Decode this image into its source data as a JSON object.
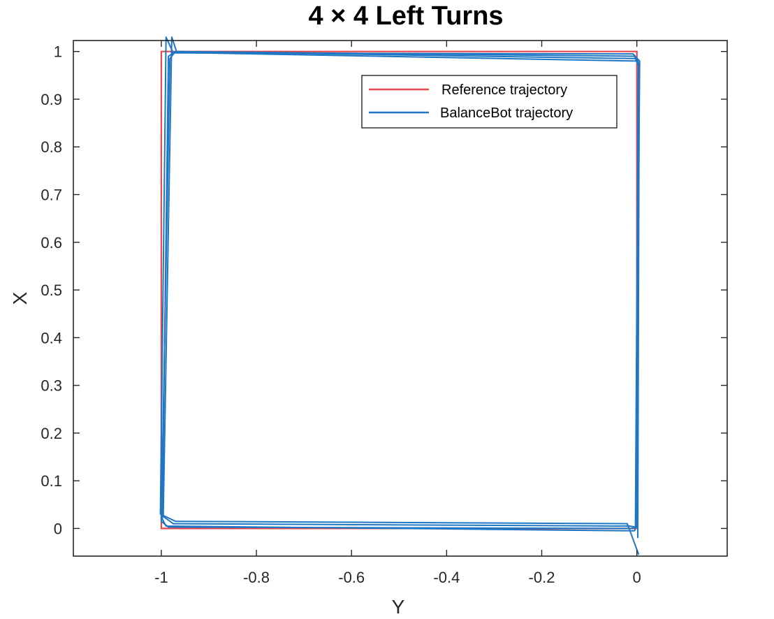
{
  "chart_data": {
    "type": "line",
    "title": "4 × 4 Left Turns",
    "xlabel": "Y",
    "ylabel": "X",
    "xlim": [
      -1.185,
      0.19
    ],
    "ylim": [
      -0.058,
      1.023
    ],
    "x_ticks": [
      -1,
      -0.8,
      -0.6,
      -0.4,
      -0.2,
      0
    ],
    "x_tick_labels": [
      "-1",
      "-0.8",
      "-0.6",
      "-0.4",
      "-0.2",
      "0"
    ],
    "y_ticks": [
      0,
      0.1,
      0.2,
      0.3,
      0.4,
      0.5,
      0.6,
      0.7,
      0.8,
      0.9,
      1
    ],
    "y_tick_labels": [
      "0",
      "0.1",
      "0.2",
      "0.3",
      "0.4",
      "0.5",
      "0.6",
      "0.7",
      "0.8",
      "0.9",
      "1"
    ],
    "grid": false,
    "legend_position": "top-right",
    "series": [
      {
        "name": "Reference trajectory",
        "color": "#e8474c",
        "x": [
          0,
          0,
          -1,
          -1,
          0
        ],
        "y": [
          0,
          1,
          1,
          0,
          0
        ]
      },
      {
        "name": "BalanceBot trajectory",
        "color": "#1f77c4",
        "loops": [
          {
            "x": [
              0.002,
              0.005,
              0.0,
              -0.97,
              -0.985,
              -0.998,
              -0.99,
              -0.005,
              0.002
            ],
            "y": [
              -0.02,
              0.97,
              0.985,
              1.0,
              0.99,
              0.02,
              0.005,
              -0.005,
              0.01
            ]
          },
          {
            "x": [
              0.0,
              0.004,
              0.002,
              -0.972,
              -0.982,
              -1.0,
              -0.985,
              -0.01,
              0.0
            ],
            "y": [
              0.0,
              0.975,
              0.98,
              0.998,
              0.985,
              0.015,
              0.003,
              0.0,
              0.005
            ]
          },
          {
            "x": [
              -0.003,
              0.003,
              -0.005,
              -0.968,
              -0.978,
              -0.996,
              -0.975,
              -0.015,
              -0.003
            ],
            "y": [
              0.005,
              0.97,
              0.99,
              1.0,
              1.03,
              0.025,
              0.01,
              0.005,
              0.003
            ]
          },
          {
            "x": [
              -0.002,
              0.006,
              -0.008,
              -0.975,
              -0.99,
              -1.002,
              -0.97,
              -0.02,
              0.004
            ],
            "y": [
              0.01,
              0.98,
              0.995,
              0.997,
              1.03,
              0.03,
              0.015,
              0.01,
              -0.055
            ]
          }
        ]
      }
    ]
  }
}
